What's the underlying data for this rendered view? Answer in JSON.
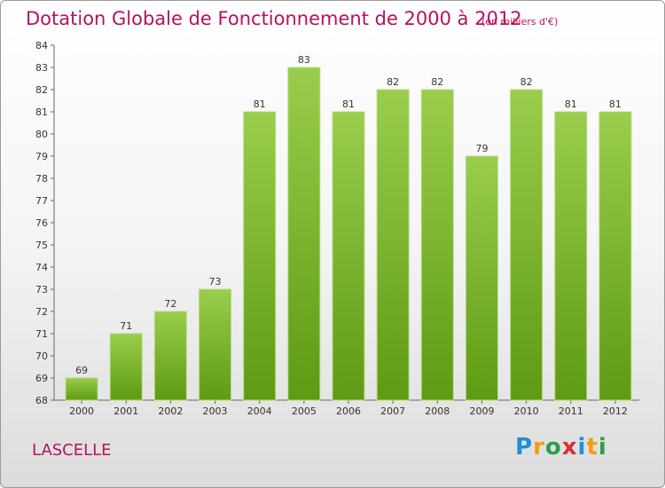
{
  "chart_data": {
    "type": "bar",
    "title": "Dotation Globale de Fonctionnement de 2000 à 2012",
    "units": "(en milliers d'€)",
    "categories": [
      "2000",
      "2001",
      "2002",
      "2003",
      "2004",
      "2005",
      "2006",
      "2007",
      "2008",
      "2009",
      "2010",
      "2011",
      "2012"
    ],
    "values": [
      69,
      71,
      72,
      73,
      81,
      83,
      81,
      82,
      82,
      79,
      82,
      81,
      81
    ],
    "ylim": [
      68,
      84
    ],
    "yticks": [
      68,
      69,
      70,
      71,
      72,
      73,
      74,
      75,
      76,
      77,
      78,
      79,
      80,
      81,
      82,
      83,
      84
    ],
    "grid": false,
    "xlabel": "",
    "ylabel": ""
  },
  "commune": "LASCELLE",
  "logo": {
    "letters": [
      "P",
      "r",
      "o",
      "x",
      "i",
      "t",
      "i"
    ],
    "colors": [
      "#1f8fd6",
      "#f39c12",
      "#2e9e48",
      "#d92f2f",
      "#1f8fd6",
      "#f39c12",
      "#2e9e48"
    ]
  },
  "colors": {
    "bar_top": "#9acd4c",
    "bar_bottom": "#5e9a14",
    "accent": "#b5125e"
  }
}
